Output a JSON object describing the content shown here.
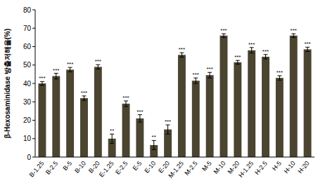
{
  "chart_data": {
    "type": "bar",
    "y_label": "β-Hexosaminidase 방출저해율(%)",
    "categories": [
      "B-1.25",
      "B-2.5",
      "B-5",
      "B-10",
      "B-20",
      "E-1.25",
      "E-2.5",
      "E-5",
      "E-10",
      "E-20",
      "M-1.25",
      "M-2.5",
      "M-5",
      "M-10",
      "M-20",
      "H-1.25",
      "H-2.5",
      "H-5",
      "H-10",
      "H-20"
    ],
    "values": [
      40,
      44,
      47.5,
      32,
      49,
      10,
      29,
      21,
      6.5,
      15,
      55.5,
      41.5,
      44.5,
      66,
      51.5,
      58,
      54.5,
      43,
      66,
      58.5
    ],
    "errors": [
      1,
      1.5,
      1.2,
      1.2,
      1.2,
      2.5,
      1.5,
      2,
      2.5,
      2.5,
      1.2,
      1.5,
      1.5,
      1,
      1,
      1.5,
      1.2,
      1.2,
      1,
      1.2
    ],
    "annotations": [
      "***",
      "***",
      "***",
      "***",
      "***",
      "**",
      "***",
      "***",
      "**",
      "***",
      "***",
      "***",
      "***",
      "***",
      "***",
      "***",
      "***",
      "***",
      "***",
      "***"
    ],
    "color": "#4a4430",
    "ylim": [
      0,
      80
    ],
    "yticks": [
      0,
      10,
      20,
      30,
      40,
      50,
      60,
      70,
      80
    ],
    "grid": false
  }
}
